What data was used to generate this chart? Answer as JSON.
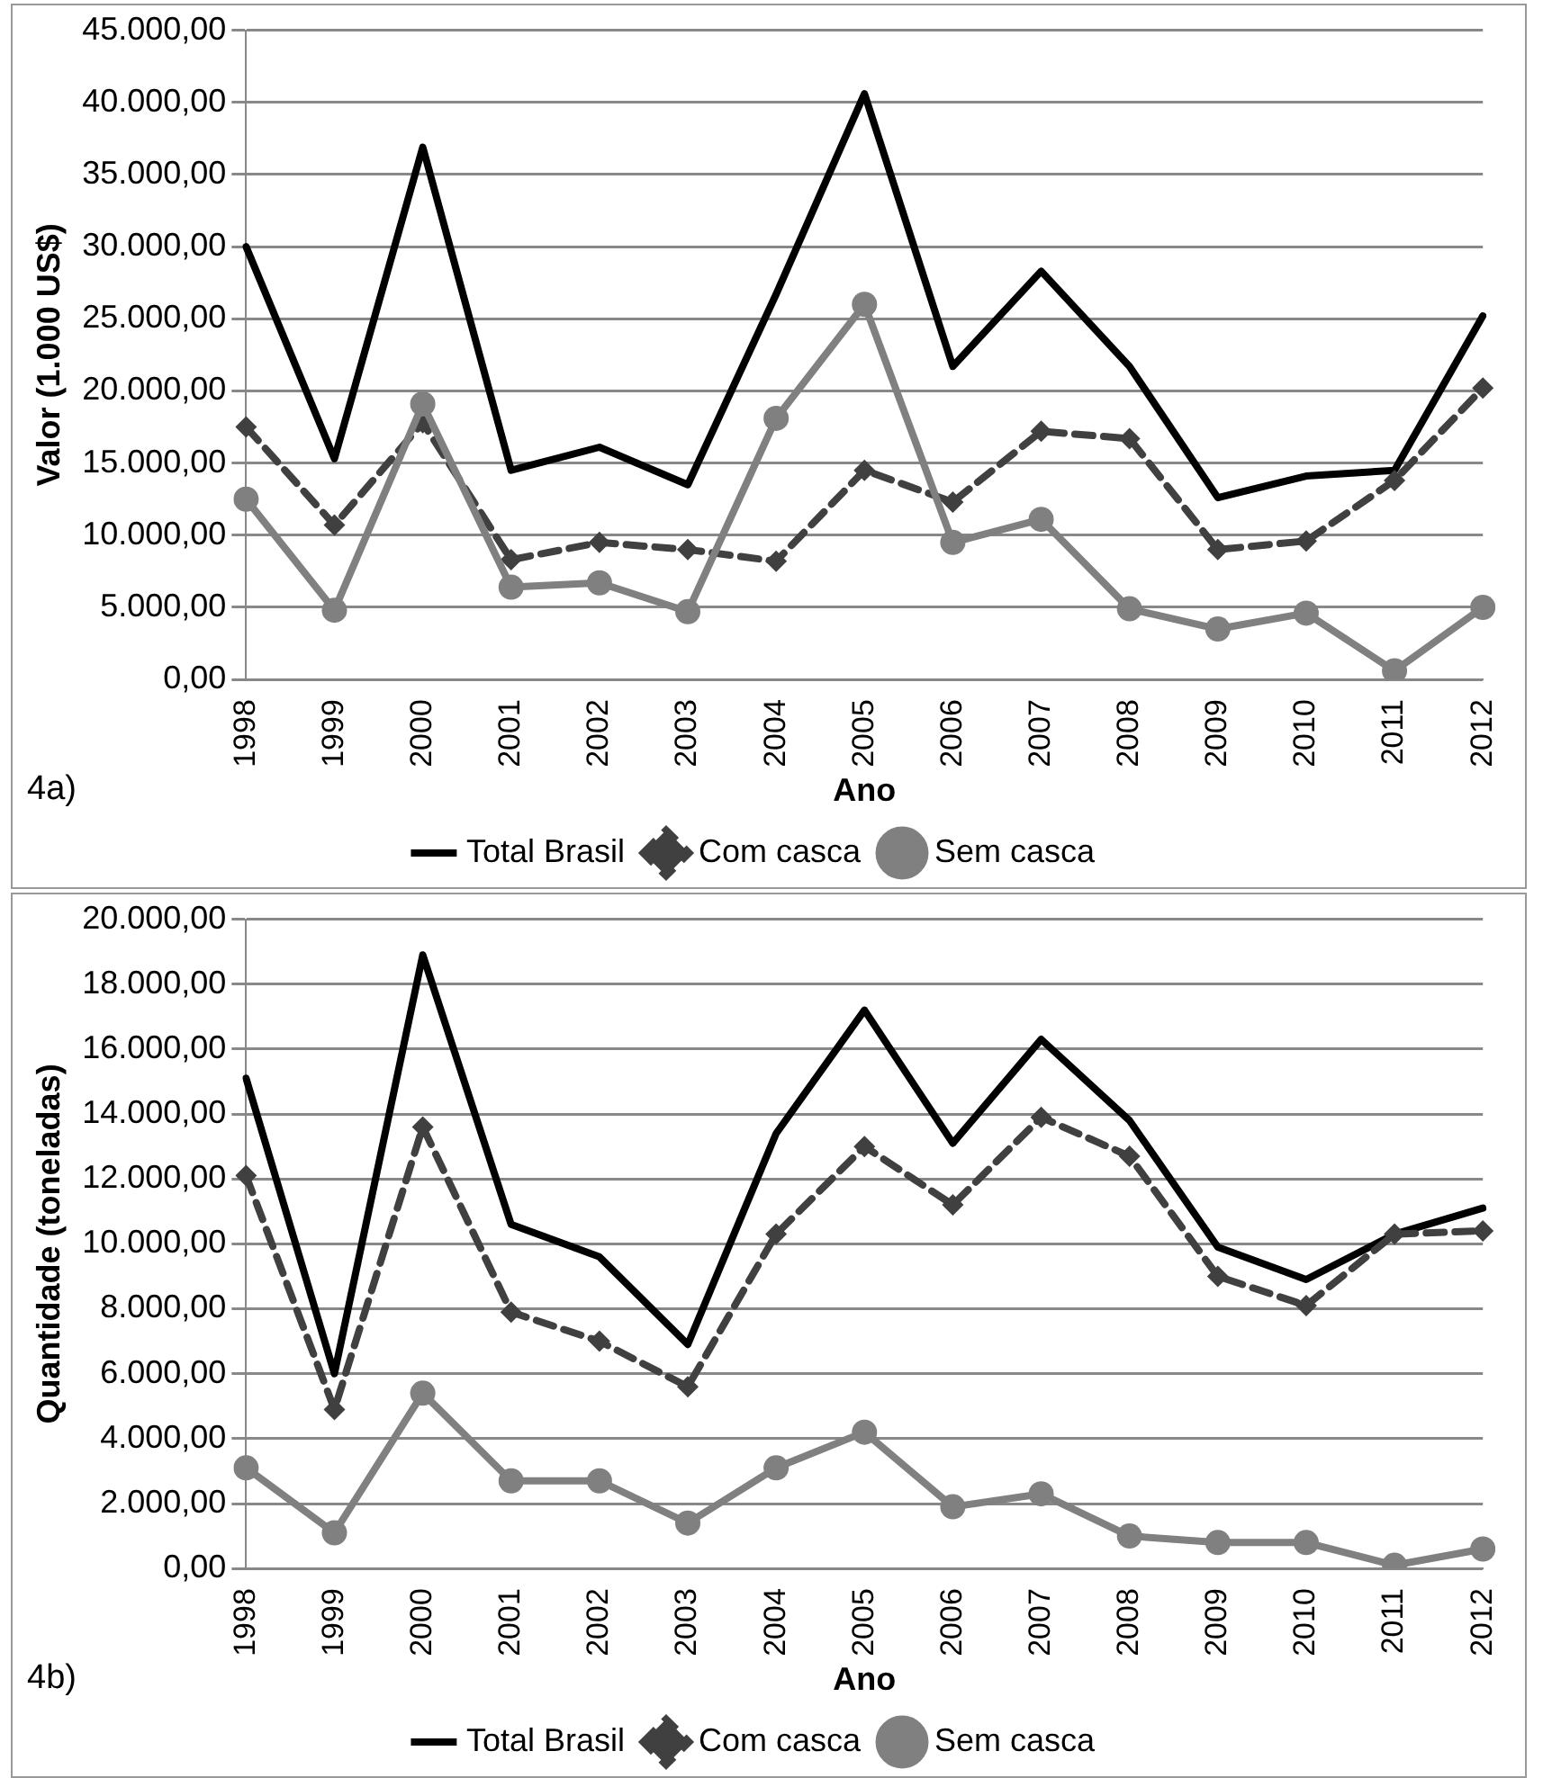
{
  "chart_data": [
    {
      "type": "line",
      "categories": [
        "1998",
        "1999",
        "2000",
        "2001",
        "2002",
        "2003",
        "2004",
        "2005",
        "2006",
        "2007",
        "2008",
        "2009",
        "2010",
        "2011",
        "2012"
      ],
      "series": [
        {
          "name": "Total Brasil",
          "color": "#000000",
          "marker": "none",
          "line_style": "solid",
          "values": [
            30000,
            15300,
            36900,
            14500,
            16100,
            13500,
            26700,
            40600,
            21700,
            28300,
            21700,
            12600,
            14100,
            14500,
            25200
          ]
        },
        {
          "name": "Com casca",
          "color": "#404040",
          "marker": "diamond",
          "line_style": "dashed",
          "values": [
            17500,
            10700,
            17800,
            8300,
            9500,
            9000,
            8200,
            14500,
            12300,
            17200,
            16700,
            9000,
            9600,
            13800,
            20200
          ]
        },
        {
          "name": "Sem casca",
          "color": "#808080",
          "marker": "circle",
          "line_style": "solid",
          "values": [
            12500,
            4800,
            19100,
            6400,
            6700,
            4700,
            18100,
            26000,
            9500,
            11100,
            4900,
            3500,
            4600,
            600,
            5000
          ]
        }
      ],
      "xlabel": "Ano",
      "ylabel": "Valor (1.000 US$)",
      "ylim": [
        0,
        45000
      ],
      "yticks": [
        {
          "value": 0,
          "label": "0,00"
        },
        {
          "value": 5000,
          "label": "5.000,00"
        },
        {
          "value": 10000,
          "label": "10.000,00"
        },
        {
          "value": 15000,
          "label": "15.000,00"
        },
        {
          "value": 20000,
          "label": "20.000,00"
        },
        {
          "value": 25000,
          "label": "25.000,00"
        },
        {
          "value": 30000,
          "label": "30.000,00"
        },
        {
          "value": 35000,
          "label": "35.000,00"
        },
        {
          "value": 40000,
          "label": "40.000,00"
        },
        {
          "value": 45000,
          "label": "45.000,00"
        }
      ],
      "grid": "y",
      "legend": "bottom",
      "annotations": [
        "4a)"
      ]
    },
    {
      "type": "line",
      "categories": [
        "1998",
        "1999",
        "2000",
        "2001",
        "2002",
        "2003",
        "2004",
        "2005",
        "2006",
        "2007",
        "2008",
        "2009",
        "2010",
        "2011",
        "2012"
      ],
      "series": [
        {
          "name": "Total Brasil",
          "color": "#000000",
          "marker": "none",
          "line_style": "solid",
          "values": [
            15100,
            6000,
            18900,
            10600,
            9600,
            6900,
            13400,
            17200,
            13100,
            16300,
            13800,
            9900,
            8900,
            10300,
            11100
          ]
        },
        {
          "name": "Com casca",
          "color": "#404040",
          "marker": "diamond",
          "line_style": "dashed",
          "values": [
            12100,
            4900,
            13600,
            7900,
            7000,
            5600,
            10300,
            13000,
            11200,
            13900,
            12700,
            9000,
            8100,
            10300,
            10400
          ]
        },
        {
          "name": "Sem casca",
          "color": "#808080",
          "marker": "circle",
          "line_style": "solid",
          "values": [
            3100,
            1100,
            5400,
            2700,
            2700,
            1400,
            3100,
            4200,
            1900,
            2300,
            1000,
            800,
            800,
            100,
            600
          ]
        }
      ],
      "xlabel": "Ano",
      "ylabel": "Quantidade (toneladas)",
      "ylim": [
        0,
        20000
      ],
      "yticks": [
        {
          "value": 0,
          "label": "0,00"
        },
        {
          "value": 2000,
          "label": "2.000,00"
        },
        {
          "value": 4000,
          "label": "4.000,00"
        },
        {
          "value": 6000,
          "label": "6.000,00"
        },
        {
          "value": 8000,
          "label": "8.000,00"
        },
        {
          "value": 10000,
          "label": "10.000,00"
        },
        {
          "value": 12000,
          "label": "12.000,00"
        },
        {
          "value": 14000,
          "label": "14.000,00"
        },
        {
          "value": 16000,
          "label": "16.000,00"
        },
        {
          "value": 18000,
          "label": "18.000,00"
        },
        {
          "value": 20000,
          "label": "20.000,00"
        }
      ],
      "grid": "y",
      "legend": "bottom",
      "annotations": [
        "4b)"
      ]
    }
  ]
}
